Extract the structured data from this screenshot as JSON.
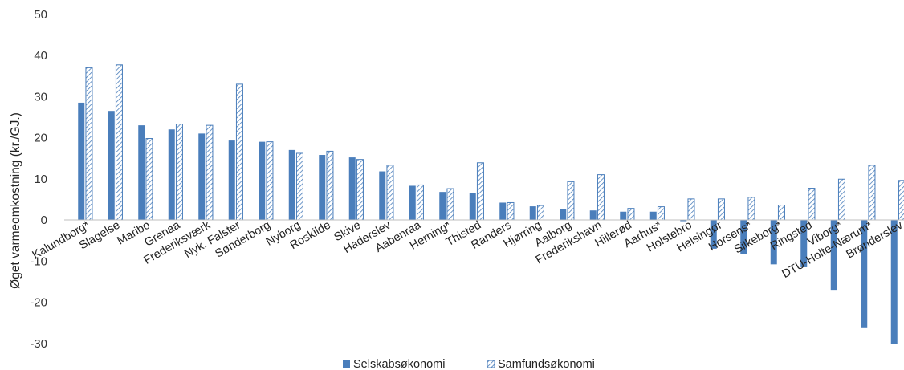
{
  "chart_data": {
    "type": "bar",
    "title": "",
    "xlabel": "",
    "ylabel": "Øget varmeomkostning (kr./GJ.)",
    "ylim": [
      -30,
      50
    ],
    "yticks": [
      -30,
      -20,
      -10,
      0,
      10,
      20,
      30,
      40,
      50
    ],
    "grid": false,
    "legend_position": "bottom",
    "categories": [
      "Kalundborg*",
      "Slagelse",
      "Maribo",
      "Grenaa",
      "Frederiksværk",
      "Nyk. Falster",
      "Sønderborg",
      "Nyborg",
      "Roskilde",
      "Skive",
      "Haderslev",
      "Aabenraa",
      "Herning*",
      "Thisted",
      "Randers",
      "Hjørring",
      "Aalborg",
      "Frederikshavn",
      "Hillerød",
      "Aarhus*",
      "Holstebro",
      "Helsingør",
      "Horsens*",
      "Silkeborg*",
      "Ringsted",
      "Viborg*",
      "DTU-Holte-Nærum*",
      "Brønderslev"
    ],
    "series": [
      {
        "name": "Selskabsøkonomi",
        "color": "#4a7ebb",
        "pattern": "solid",
        "values": [
          28.5,
          26.5,
          23,
          22,
          21,
          19.3,
          19,
          17,
          15.8,
          15.2,
          11.8,
          8.3,
          6.8,
          6.5,
          4.2,
          3.3,
          2.6,
          2.3,
          2,
          2,
          -0.3,
          -7,
          -8.2,
          -10.8,
          -11.5,
          -17,
          -26.3,
          -30.2
        ]
      },
      {
        "name": "Samfundsøkonomi",
        "color": "#4a7ebb",
        "pattern": "diagonal-hatch",
        "values": [
          37,
          37.7,
          19.8,
          23.3,
          23,
          33,
          19,
          16.2,
          16.7,
          14.7,
          13.3,
          8.5,
          7.6,
          13.9,
          4.2,
          3.5,
          9.3,
          11,
          2.8,
          3.2,
          5.1,
          5.1,
          5.5,
          3.6,
          7.7,
          9.9,
          13.3,
          9.6
        ]
      }
    ]
  }
}
